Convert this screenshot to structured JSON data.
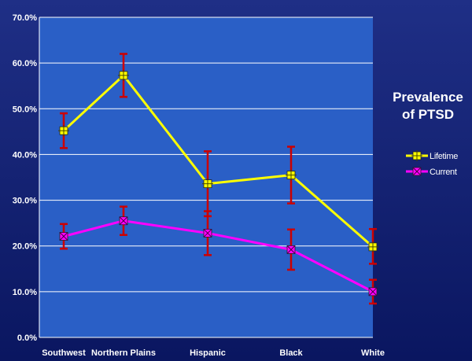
{
  "chart_data": {
    "type": "line",
    "title_lines": [
      "Prevalence",
      "of PTSD"
    ],
    "categories": [
      "Southwest",
      "Northern Plains",
      "Hispanic",
      "Black",
      "White"
    ],
    "ylim": [
      0,
      70
    ],
    "yticks": [
      "0.0%",
      "10.0%",
      "20.0%",
      "30.0%",
      "40.0%",
      "50.0%",
      "60.0%",
      "70.0%"
    ],
    "grid": true,
    "legend_position": "right",
    "series": [
      {
        "name": "Lifetime",
        "color": "#ffff00",
        "marker": "square-plus",
        "values": [
          45.2,
          57.3,
          33.6,
          35.5,
          19.8
        ],
        "error_low": [
          41.4,
          52.6,
          26.5,
          29.3,
          16.1
        ],
        "error_high": [
          49.0,
          62.0,
          40.7,
          41.7,
          23.7
        ]
      },
      {
        "name": "Current",
        "color": "#ff00ff",
        "marker": "square-x",
        "values": [
          22.1,
          25.5,
          22.8,
          19.2,
          10.0
        ],
        "error_low": [
          19.4,
          22.4,
          18.0,
          14.8,
          7.4
        ],
        "error_high": [
          24.8,
          28.6,
          27.6,
          23.6,
          12.6
        ]
      }
    ],
    "error_bar_color": "#cc0000"
  }
}
